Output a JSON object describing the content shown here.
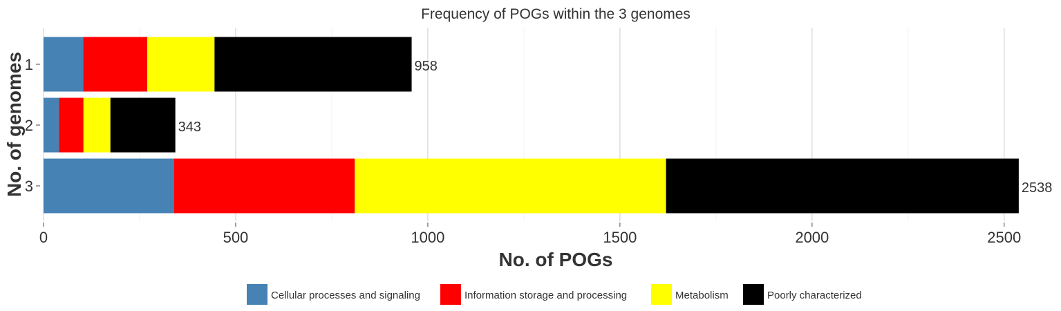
{
  "chart_data": {
    "type": "bar",
    "orientation": "horizontal",
    "stacked": true,
    "title": "Frequency of POGs within the 3 genomes",
    "xlabel": "No. of POGs",
    "ylabel": "No. of genomes",
    "categories": [
      "1",
      "2",
      "3"
    ],
    "xlim": [
      0,
      2540
    ],
    "x_ticks": [
      0,
      500,
      1000,
      1500,
      2000,
      2500
    ],
    "grid": "vertical major",
    "legend_position": "bottom",
    "series": [
      {
        "name": "Cellular processes and signaling",
        "color": "#4682B4",
        "values": [
          103,
          40,
          340
        ]
      },
      {
        "name": "Information storage and processing",
        "color": "#FF0000",
        "values": [
          167,
          64,
          470
        ]
      },
      {
        "name": "Metabolism",
        "color": "#FFFF00",
        "values": [
          175,
          70,
          810
        ]
      },
      {
        "name": "Poorly characterized",
        "color": "#000000",
        "values": [
          513,
          169,
          918
        ]
      }
    ],
    "totals": [
      958,
      343,
      2538
    ]
  }
}
